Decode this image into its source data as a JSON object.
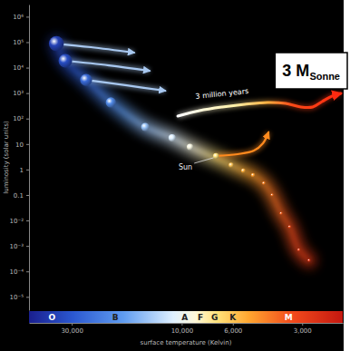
{
  "chart_data": {
    "type": "scatter",
    "x_label": "surface temperature (Kelvin)",
    "y_label": "luminosity (solar units)",
    "log": true,
    "xlim": [
      46000,
      2000
    ],
    "ylim": [
      3e-06,
      3000000
    ],
    "xticks": [
      {
        "value": 30000,
        "label": "30,000"
      },
      {
        "value": 10000,
        "label": "10,000"
      },
      {
        "value": 6000,
        "label": "6,000"
      },
      {
        "value": 3000,
        "label": "3,000"
      }
    ],
    "yticks": [
      {
        "value": 1000000,
        "label": "10⁶"
      },
      {
        "value": 100000,
        "label": "10⁵"
      },
      {
        "value": 10000,
        "label": "10⁴"
      },
      {
        "value": 1000,
        "label": "10³"
      },
      {
        "value": 100,
        "label": "10²"
      },
      10,
      1,
      0.1,
      {
        "value": 0.01,
        "label": "10⁻²"
      },
      {
        "value": 0.001,
        "label": "10⁻³"
      },
      {
        "value": 0.0001,
        "label": "10⁻⁴"
      },
      {
        "value": 1e-05,
        "label": "10⁻⁵"
      }
    ],
    "spectral_classes": {
      "labels": [
        "O",
        "B",
        "A",
        "F",
        "G",
        "K",
        "M"
      ],
      "values": [
        36600,
        19400,
        9700,
        8300,
        7200,
        6000,
        3440
      ]
    },
    "annotations": [
      {
        "text": "3 M",
        "subscript": "Sonne"
      }
    ],
    "series": [
      {
        "type": "scatter",
        "marker": "sphere",
        "x": [
          35000,
          32000,
          26000,
          20300,
          14400,
          11000,
          9200,
          6100,
          5400,
          4900,
          4400,
          4050,
          3700,
          3400,
          3100,
          2800
        ],
        "values": [
          88000,
          18600,
          3300,
          430,
          47,
          17.5,
          7.7,
          1.5,
          0.9,
          0.6,
          0.29,
          0.1,
          0.019,
          0.0056,
          0.0007,
          0.00027
        ]
      },
      {
        "name": "Sun",
        "type": "scatter",
        "marker": "sphere",
        "x": [
          7100
        ],
        "values": [
          3.4
        ]
      },
      {
        "name": "3 million years",
        "type": "line",
        "line_style": "arrow",
        "x": [
          10400,
          8370,
          6670,
          5320,
          4240,
          3540,
          3040,
          2700,
          2460,
          2230,
          2040
        ],
        "values": [
          125,
          204,
          284,
          363,
          428,
          394,
          284,
          284,
          463,
          759,
          970
        ]
      },
      {
        "type": "line",
        "line_style": "arrow",
        "color": "#a8c8f0",
        "x": [
          35000,
          24800,
          16100
        ],
        "values": [
          88000,
          63500,
          38900
        ]
      },
      {
        "type": "line",
        "line_style": "arrow",
        "color": "#a8c8f0",
        "x": [
          32000,
          20700,
          13800
        ],
        "values": [
          18600,
          12300,
          7500
        ]
      },
      {
        "type": "line",
        "line_style": "arrow",
        "color": "#a8c8f0",
        "x": [
          26000,
          17300,
          11800
        ],
        "values": [
          3300,
          2000,
          1240
        ]
      },
      {
        "type": "line",
        "line_style": "arrow",
        "color": "#ff8a1e",
        "x": [
          7100,
          5720,
          4860,
          4440,
          4200
        ],
        "values": [
          3.4,
          4,
          5.5,
          10.7,
          28.6
        ]
      }
    ]
  }
}
